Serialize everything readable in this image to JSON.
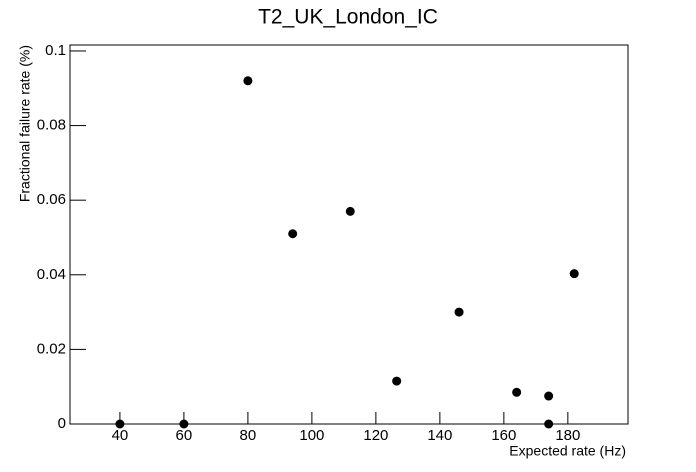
{
  "chart_data": {
    "type": "scatter",
    "title": "T2_UK_London_IC",
    "x_label": "Expected rate (Hz)",
    "y_label": "Fractional failure rate (%)",
    "series": [
      {
        "color": "#000000",
        "x": [
          40,
          60,
          80,
          94,
          112,
          126.5,
          146,
          164,
          174,
          174,
          182
        ],
        "values": [
          0,
          0,
          0.092,
          0.051,
          0.057,
          0.0115,
          0.03,
          0.0085,
          0.0075,
          0,
          0.0403
        ]
      }
    ],
    "xlim": [
      24.4,
      198.8
    ],
    "ylim": [
      0,
      0.1016
    ],
    "xticks": [
      40,
      60,
      80,
      100,
      120,
      140,
      160,
      180
    ],
    "yticks": [
      0,
      0.02,
      0.04,
      0.06,
      0.08,
      0.1
    ]
  }
}
